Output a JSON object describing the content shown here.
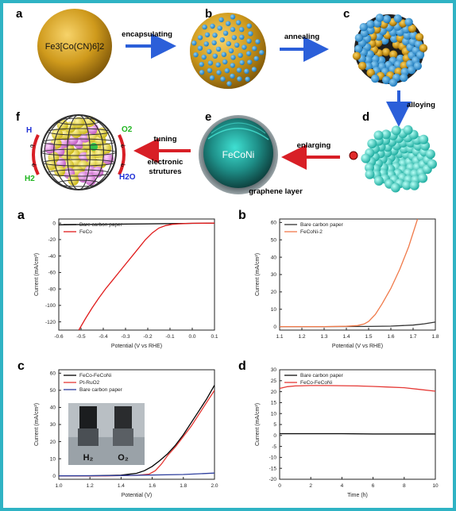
{
  "scheme": {
    "steps": [
      {
        "letter": "a"
      },
      {
        "letter": "b"
      },
      {
        "letter": "c"
      },
      {
        "letter": "d"
      },
      {
        "letter": "e"
      },
      {
        "letter": "f"
      }
    ],
    "arrows": {
      "encapsulating": "encapsulating",
      "annealing": "annealing",
      "alloying": "alloying",
      "enlarging": "enlarging",
      "tuning": "tuning",
      "electronic_1": "electronic",
      "electronic_2": "strutures"
    },
    "sphere_label_main": "Fe",
    "sphere_label_formula": "Fe3[Co(CN)6]2",
    "fecon_label": "FeCoNi",
    "graphene_label": "graphene layer",
    "f_labels": {
      "h_plus": "H",
      "h2": "H2",
      "o2": "O2",
      "h2o": "H2O",
      "e1": "e-",
      "e2": "e-",
      "e3": "e-",
      "e4": "e-"
    },
    "colors": {
      "gold": "#c8951a",
      "blue_dot": "#2a9ad6",
      "cyan": "#35d6c8",
      "arrow_blue": "#2b5fd9",
      "arrow_red": "#d81f26"
    }
  },
  "chart_data": [
    {
      "panel": "a",
      "type": "line",
      "xlabel": "Potential (V vs RHE)",
      "ylabel": "Current (mA/cm²)",
      "xlim": [
        -0.6,
        0.1
      ],
      "ylim": [
        -130,
        5
      ],
      "xticks": [
        -0.6,
        -0.5,
        -0.4,
        -0.3,
        -0.2,
        -0.1,
        0.0,
        0.1
      ],
      "xtick_labels": [
        "-0.6",
        "-0.5",
        "-0.4",
        "-0.3",
        "-0.2",
        "-0.1",
        "0.0",
        "0.1"
      ],
      "yticks": [
        0,
        -20,
        -40,
        -60,
        -80,
        -100,
        -120
      ],
      "ytick_labels": [
        "0",
        "-20",
        "-40",
        "-60",
        "-80",
        "-100",
        "-120"
      ],
      "legend_position": "top-left",
      "series": [
        {
          "name": "Bare carbon paper",
          "color": "#000000",
          "x": [
            -0.6,
            -0.4,
            -0.2,
            0.0,
            0.1
          ],
          "y": [
            -2,
            -1.4,
            -0.9,
            -0.3,
            0
          ]
        },
        {
          "name": "FeCo",
          "color": "#e01b1b",
          "x": [
            -0.51,
            -0.48,
            -0.45,
            -0.42,
            -0.39,
            -0.36,
            -0.33,
            -0.3,
            -0.27,
            -0.24,
            -0.21,
            -0.18,
            -0.15,
            -0.12,
            -0.09,
            -0.06,
            -0.03,
            0.0,
            0.05,
            0.1
          ],
          "y": [
            -130,
            -116,
            -103,
            -91,
            -80,
            -70,
            -60,
            -50,
            -40,
            -30,
            -20,
            -12,
            -6,
            -3,
            -1.5,
            -0.9,
            -0.5,
            -0.2,
            -0.1,
            0
          ]
        }
      ]
    },
    {
      "panel": "b",
      "type": "line",
      "xlabel": "Potential (V vs RHE)",
      "ylabel": "Current (mA/cm²)",
      "xlim": [
        1.1,
        1.8
      ],
      "ylim": [
        -2,
        62
      ],
      "xticks": [
        1.1,
        1.2,
        1.3,
        1.4,
        1.5,
        1.6,
        1.7,
        1.8
      ],
      "xtick_labels": [
        "1.1",
        "1.2",
        "1.3",
        "1.4",
        "1.5",
        "1.6",
        "1.7",
        "1.8"
      ],
      "yticks": [
        0,
        10,
        20,
        30,
        40,
        50,
        60
      ],
      "ytick_labels": [
        "0",
        "10",
        "20",
        "30",
        "40",
        "50",
        "60"
      ],
      "legend_position": "top-left",
      "series": [
        {
          "name": "Bare carbon paper",
          "color": "#333333",
          "x": [
            1.1,
            1.3,
            1.5,
            1.6,
            1.7,
            1.75,
            1.8
          ],
          "y": [
            0,
            0,
            0.1,
            0.3,
            0.9,
            1.6,
            2.6
          ]
        },
        {
          "name": "FeCoNi-2",
          "color": "#f07a4a",
          "x": [
            1.1,
            1.3,
            1.4,
            1.45,
            1.48,
            1.5,
            1.53,
            1.56,
            1.6,
            1.64,
            1.68,
            1.7,
            1.72
          ],
          "y": [
            0,
            0,
            0.2,
            0.6,
            1.5,
            3,
            7,
            13,
            22,
            33,
            46,
            54,
            62
          ]
        }
      ]
    },
    {
      "panel": "c",
      "type": "line",
      "xlabel": "Potential (V)",
      "ylabel": "Current (mA/cm²)",
      "xlim": [
        1.0,
        2.0
      ],
      "ylim": [
        -2,
        62
      ],
      "xticks": [
        1.0,
        1.2,
        1.4,
        1.6,
        1.8,
        2.0
      ],
      "xtick_labels": [
        "1.0",
        "1.2",
        "1.4",
        "1.6",
        "1.8",
        "2.0"
      ],
      "yticks": [
        0,
        10,
        20,
        30,
        40,
        50,
        60
      ],
      "ytick_labels": [
        "0",
        "10",
        "20",
        "30",
        "40",
        "50",
        "60"
      ],
      "legend_position": "top-left",
      "inset_labels": [
        "H₂",
        "O₂"
      ],
      "series": [
        {
          "name": "FeCo-FeCoNi",
          "color": "#000000",
          "x": [
            1.0,
            1.2,
            1.4,
            1.5,
            1.55,
            1.6,
            1.65,
            1.7,
            1.75,
            1.8,
            1.85,
            1.9,
            1.95,
            2.0
          ],
          "y": [
            0,
            0,
            0.4,
            1.5,
            3,
            5.5,
            9,
            13,
            18,
            24,
            31,
            38,
            45,
            53
          ]
        },
        {
          "name": "Pt-RuO2",
          "color": "#e53935",
          "x": [
            1.0,
            1.3,
            1.5,
            1.58,
            1.62,
            1.66,
            1.7,
            1.75,
            1.8,
            1.85,
            1.9,
            1.95,
            2.0
          ],
          "y": [
            0,
            0,
            0.3,
            1,
            3,
            7,
            12,
            17,
            23,
            29,
            36,
            43,
            50
          ]
        },
        {
          "name": "Bare carbon paper",
          "color": "#2e3f9e",
          "x": [
            1.0,
            1.4,
            1.8,
            2.0
          ],
          "y": [
            0,
            0.2,
            0.8,
            1.6
          ]
        }
      ]
    },
    {
      "panel": "d",
      "type": "line",
      "xlabel": "Time (h)",
      "ylabel": "Current (mA/cm²)",
      "xlim": [
        0,
        10
      ],
      "ylim": [
        -20,
        30
      ],
      "xticks": [
        0,
        2,
        4,
        6,
        8,
        10
      ],
      "xtick_labels": [
        "0",
        "2",
        "4",
        "6",
        "8",
        "10"
      ],
      "yticks": [
        -20,
        -15,
        -10,
        -5,
        0,
        5,
        10,
        15,
        20,
        25,
        30
      ],
      "ytick_labels": [
        "-20",
        "-15",
        "-10",
        "-5",
        "0",
        "5",
        "10",
        "15",
        "20",
        "25",
        "30"
      ],
      "legend_position": "top-left",
      "series": [
        {
          "name": "Bare carbon paper",
          "color": "#111111",
          "x": [
            0,
            2,
            4,
            6,
            8,
            10
          ],
          "y": [
            0.8,
            0.8,
            0.8,
            0.7,
            0.7,
            0.7
          ]
        },
        {
          "name": "FeCo-FeCoNi",
          "color": "#e53935",
          "x": [
            0,
            0.5,
            1,
            2,
            3,
            4,
            5,
            6,
            7,
            8,
            9,
            10
          ],
          "y": [
            21.5,
            22.3,
            22.6,
            22.8,
            22.8,
            22.7,
            22.6,
            22.4,
            22.1,
            21.8,
            21.0,
            20.2
          ]
        }
      ]
    }
  ]
}
